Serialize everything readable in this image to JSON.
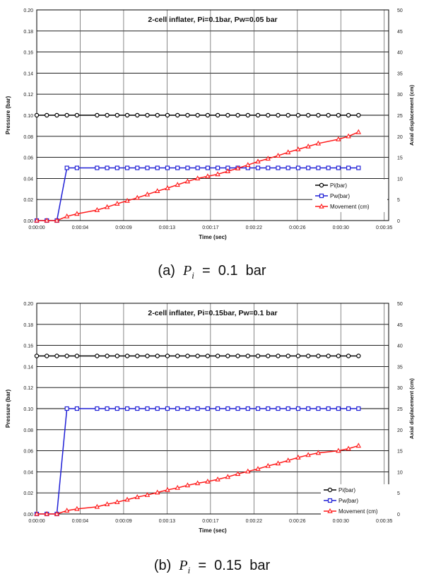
{
  "chart_data": [
    {
      "type": "line",
      "title": "2-cell inflater, Pi=0.1bar, Pw=0.05 bar",
      "xlabel": "Time (sec)",
      "ylabel": "Pressure (bar)",
      "y2label": "Axial displacement (cm)",
      "xlim": [
        0,
        35
      ],
      "ylim": [
        0,
        0.2
      ],
      "y2lim": [
        0,
        50
      ],
      "x_ticks": [
        0,
        4.32,
        8.64,
        12.96,
        17.28,
        21.6,
        25.92,
        30.24,
        34.56
      ],
      "x_tick_labels": [
        "0:00:00",
        "0:00:04",
        "0:00:09",
        "0:00:13",
        "0:00:17",
        "0:00:22",
        "0:00:26",
        "0:00:30",
        "0:00:35"
      ],
      "y_tick_labels": [
        "0.00",
        "0.02",
        "0.04",
        "0.06",
        "0.08",
        "0.10",
        "0.12",
        "0.14",
        "0.16",
        "0.18",
        "0.20"
      ],
      "y2_tick_labels": [
        "0",
        "5",
        "10",
        "15",
        "20",
        "25",
        "30",
        "35",
        "40",
        "45",
        "50"
      ],
      "legend_position": "right-middle",
      "grid": true,
      "series": [
        {
          "name": "Pi(bar)",
          "axis": "left",
          "color": "#000000",
          "marker": "circle",
          "x": [
            0,
            1,
            2,
            3,
            4,
            6,
            7,
            8,
            9,
            10,
            11,
            12,
            13,
            14,
            15,
            16,
            17,
            18,
            19,
            20,
            21,
            22,
            23,
            24,
            25,
            26,
            27,
            28,
            29,
            30,
            31,
            32
          ],
          "y": [
            0.1,
            0.1,
            0.1,
            0.1,
            0.1,
            0.1,
            0.1,
            0.1,
            0.1,
            0.1,
            0.1,
            0.1,
            0.1,
            0.1,
            0.1,
            0.1,
            0.1,
            0.1,
            0.1,
            0.1,
            0.1,
            0.1,
            0.1,
            0.1,
            0.1,
            0.1,
            0.1,
            0.1,
            0.1,
            0.1,
            0.1,
            0.1
          ]
        },
        {
          "name": "Pw(bar)",
          "axis": "left",
          "color": "#1f1fd6",
          "marker": "square",
          "x": [
            0,
            1,
            2,
            3,
            4,
            6,
            7,
            8,
            9,
            10,
            11,
            12,
            13,
            14,
            15,
            16,
            17,
            18,
            19,
            20,
            21,
            22,
            23,
            24,
            25,
            26,
            27,
            28,
            29,
            30,
            31,
            32
          ],
          "y": [
            0,
            0,
            0,
            0.05,
            0.05,
            0.05,
            0.05,
            0.05,
            0.05,
            0.05,
            0.05,
            0.05,
            0.05,
            0.05,
            0.05,
            0.05,
            0.05,
            0.05,
            0.05,
            0.05,
            0.05,
            0.05,
            0.05,
            0.05,
            0.05,
            0.05,
            0.05,
            0.05,
            0.05,
            0.05,
            0.05,
            0.05
          ]
        },
        {
          "name": "Movement (cm)",
          "axis": "right",
          "color": "#ff1a1a",
          "marker": "triangle",
          "x": [
            0,
            1,
            2,
            3,
            4,
            6,
            7,
            8,
            9,
            10,
            11,
            12,
            13,
            14,
            15,
            16,
            17,
            18,
            19,
            20,
            21,
            22,
            23,
            24,
            25,
            26,
            27,
            28,
            30,
            31,
            32
          ],
          "y": [
            0,
            0,
            0,
            1.0,
            1.6,
            2.5,
            3.2,
            4.0,
            4.7,
            5.4,
            6.2,
            7.0,
            7.7,
            8.5,
            9.3,
            10.0,
            10.5,
            11.0,
            11.7,
            12.4,
            13.2,
            14.0,
            14.7,
            15.4,
            16.2,
            16.9,
            17.6,
            18.3,
            19.3,
            20.0,
            21.0
          ]
        }
      ]
    },
    {
      "type": "line",
      "title": "2-cell inflater, Pi=0.15bar, Pw=0.1 bar",
      "xlabel": "Time (sec)",
      "ylabel": "Pressure (bar)",
      "y2label": "Axial displacement (cm)",
      "xlim": [
        0,
        35
      ],
      "ylim": [
        0,
        0.2
      ],
      "y2lim": [
        0,
        50
      ],
      "x_ticks": [
        0,
        4.32,
        8.64,
        12.96,
        17.28,
        21.6,
        25.92,
        30.24,
        34.56
      ],
      "x_tick_labels": [
        "0:00:00",
        "0:00:04",
        "0:00:09",
        "0:00:13",
        "0:00:17",
        "0:00:22",
        "0:00:26",
        "0:00:30",
        "0:00:35"
      ],
      "y_tick_labels": [
        "0.00",
        "0.02",
        "0.04",
        "0.06",
        "0.08",
        "0.10",
        "0.12",
        "0.14",
        "0.16",
        "0.18",
        "0.20"
      ],
      "y2_tick_labels": [
        "0",
        "5",
        "10",
        "15",
        "20",
        "25",
        "30",
        "35",
        "40",
        "45",
        "50"
      ],
      "legend_position": "bottom-right",
      "grid": true,
      "series": [
        {
          "name": "Pi(bar)",
          "axis": "left",
          "color": "#000000",
          "marker": "circle",
          "x": [
            0,
            1,
            2,
            3,
            4,
            6,
            7,
            8,
            9,
            10,
            11,
            12,
            13,
            14,
            15,
            16,
            17,
            18,
            19,
            20,
            21,
            22,
            23,
            24,
            25,
            26,
            27,
            28,
            29,
            30,
            31,
            32
          ],
          "y": [
            0.15,
            0.15,
            0.15,
            0.15,
            0.15,
            0.15,
            0.15,
            0.15,
            0.15,
            0.15,
            0.15,
            0.15,
            0.15,
            0.15,
            0.15,
            0.15,
            0.15,
            0.15,
            0.15,
            0.15,
            0.15,
            0.15,
            0.15,
            0.15,
            0.15,
            0.15,
            0.15,
            0.15,
            0.15,
            0.15,
            0.15,
            0.15
          ]
        },
        {
          "name": "Pw(bar)",
          "axis": "left",
          "color": "#1f1fd6",
          "marker": "square",
          "x": [
            0,
            1,
            2,
            3,
            4,
            6,
            7,
            8,
            9,
            10,
            11,
            12,
            13,
            14,
            15,
            16,
            17,
            18,
            19,
            20,
            21,
            22,
            23,
            24,
            25,
            26,
            27,
            28,
            29,
            30,
            31,
            32
          ],
          "y": [
            0,
            0,
            0,
            0.1,
            0.1,
            0.1,
            0.1,
            0.1,
            0.1,
            0.1,
            0.1,
            0.1,
            0.1,
            0.1,
            0.1,
            0.1,
            0.1,
            0.1,
            0.1,
            0.1,
            0.1,
            0.1,
            0.1,
            0.1,
            0.1,
            0.1,
            0.1,
            0.1,
            0.1,
            0.1,
            0.1,
            0.1
          ]
        },
        {
          "name": "Movement (cm)",
          "axis": "right",
          "color": "#ff1a1a",
          "marker": "triangle",
          "x": [
            0,
            1,
            2,
            3,
            4,
            6,
            7,
            8,
            9,
            10,
            11,
            12,
            13,
            14,
            15,
            16,
            17,
            18,
            19,
            20,
            21,
            22,
            23,
            24,
            25,
            26,
            27,
            28,
            30,
            31,
            32
          ],
          "y": [
            0,
            0,
            0,
            0.8,
            1.2,
            1.7,
            2.3,
            2.8,
            3.4,
            4.0,
            4.5,
            5.1,
            5.7,
            6.2,
            6.8,
            7.3,
            7.7,
            8.2,
            8.8,
            9.5,
            10.1,
            10.7,
            11.4,
            12.0,
            12.7,
            13.4,
            14.0,
            14.5,
            15.0,
            15.5,
            16.2
          ]
        }
      ]
    }
  ],
  "captions": [
    {
      "prefix": "(a)",
      "symbol": "P",
      "subscript": "i",
      "value": "=  0.1  bar"
    },
    {
      "prefix": "(b)",
      "symbol": "P",
      "subscript": "i",
      "value": "=  0.15  bar"
    }
  ]
}
